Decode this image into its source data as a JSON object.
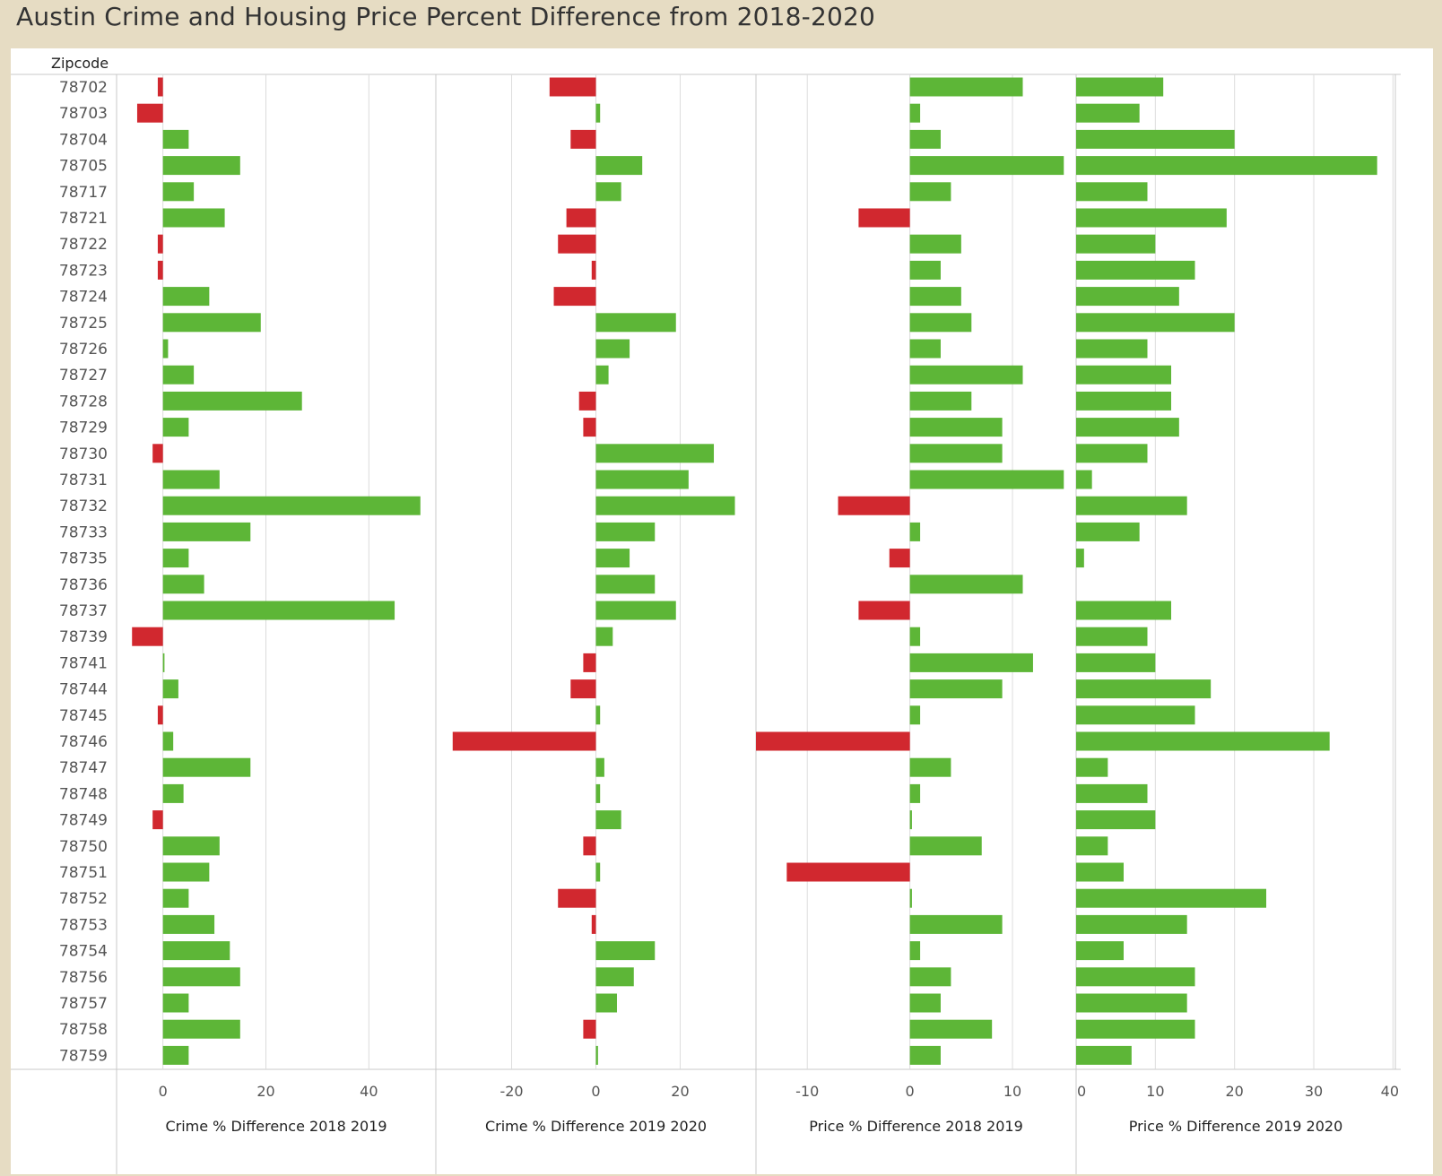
{
  "title": "Austin Crime and Housing Price Percent Difference from 2018-2020",
  "row_header": "Zipcode",
  "colors": {
    "positive": "#5db637",
    "negative": "#d1282f",
    "background": "#e6dcc3",
    "axis": "#c8c8c8",
    "zero_line": "#dcdcdc"
  },
  "chart_data": {
    "type": "bar",
    "orientation": "horizontal",
    "categories": [
      "78702",
      "78703",
      "78704",
      "78705",
      "78717",
      "78721",
      "78722",
      "78723",
      "78724",
      "78725",
      "78726",
      "78727",
      "78728",
      "78729",
      "78730",
      "78731",
      "78732",
      "78733",
      "78735",
      "78736",
      "78737",
      "78739",
      "78741",
      "78744",
      "78745",
      "78746",
      "78747",
      "78748",
      "78749",
      "78750",
      "78751",
      "78752",
      "78753",
      "78754",
      "78756",
      "78757",
      "78758",
      "78759"
    ],
    "series": [
      {
        "name": "Crime % Difference 2018 2019",
        "xlim": [
          -9,
          53
        ],
        "ticks": [
          0,
          20,
          40
        ],
        "values": [
          -1,
          -5,
          5,
          15,
          6,
          12,
          -1,
          -1,
          9,
          19,
          1,
          6,
          27,
          5,
          -2,
          11,
          50,
          17,
          5,
          8,
          45,
          -6,
          0.3,
          3,
          -1,
          2,
          17,
          4,
          -2,
          11,
          9,
          5,
          10,
          13,
          15,
          5,
          15,
          5
        ]
      },
      {
        "name": "Crime % Difference 2019 2020",
        "xlim": [
          -38,
          38
        ],
        "ticks": [
          -20,
          0,
          20
        ],
        "values": [
          -11,
          1,
          -6,
          11,
          6,
          -7,
          -9,
          -1,
          -10,
          19,
          8,
          3,
          -4,
          -3,
          28,
          22,
          33,
          14,
          8,
          14,
          19,
          4,
          -3,
          -6,
          1,
          -34,
          2,
          1,
          6,
          -3,
          1,
          -9,
          -1,
          14,
          9,
          5,
          -3,
          0.5
        ]
      },
      {
        "name": "Price % Difference 2018 2019",
        "xlim": [
          -15,
          16.2
        ],
        "ticks": [
          -10,
          0,
          10
        ],
        "values": [
          11,
          1,
          3,
          15,
          4,
          -5,
          5,
          3,
          5,
          6,
          3,
          11,
          6,
          9,
          9,
          15,
          -7,
          1,
          -2,
          11,
          -5,
          1,
          12,
          9,
          1,
          -15,
          4,
          1,
          0.2,
          7,
          -12,
          0.2,
          9,
          1,
          4,
          3,
          8,
          3
        ]
      },
      {
        "name": "Price % Difference 2019 2020",
        "xlim": [
          0,
          40.3
        ],
        "ticks": [
          0,
          10,
          20,
          30,
          40
        ],
        "values": [
          11,
          8,
          20,
          38,
          9,
          19,
          10,
          15,
          13,
          20,
          9,
          12,
          12,
          13,
          9,
          2,
          14,
          8,
          1,
          null,
          12,
          9,
          10,
          17,
          15,
          32,
          4,
          9,
          10,
          4,
          6,
          24,
          14,
          6,
          15,
          14,
          15,
          7
        ]
      }
    ]
  }
}
